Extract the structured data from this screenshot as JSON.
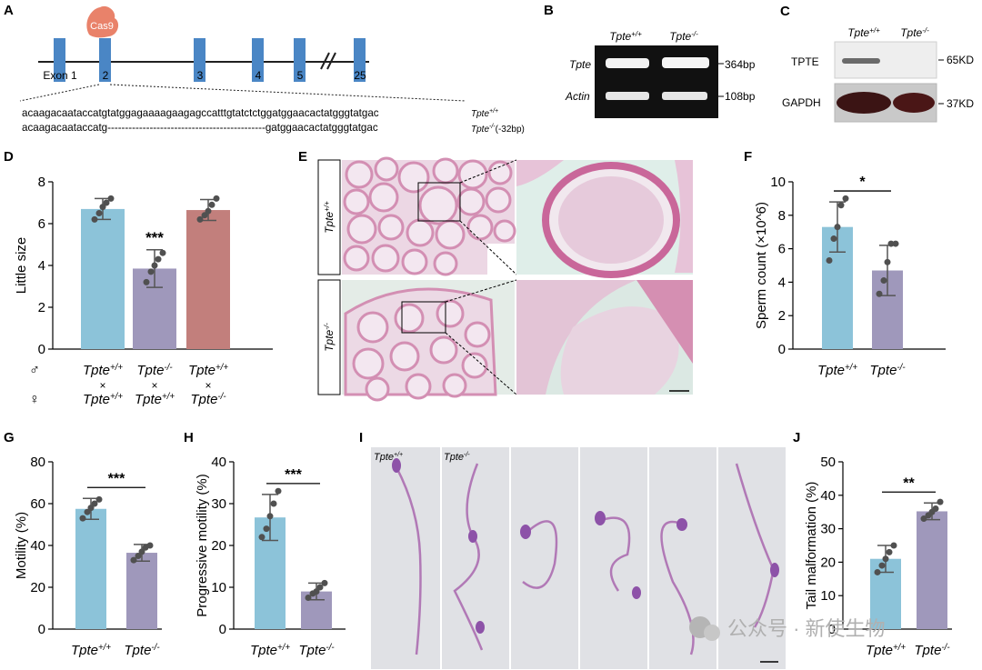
{
  "panels": {
    "a": "A",
    "b": "B",
    "c": "C",
    "d": "D",
    "e": "E",
    "f": "F",
    "g": "G",
    "h": "H",
    "i": "I",
    "j": "J"
  },
  "genotypes": {
    "wt": "Tpte",
    "wt_sup": "+/+",
    "ko": "Tpte",
    "ko_sup": "-/-"
  },
  "panel_a": {
    "cas9": "Cas9",
    "exons": [
      "Exon 1",
      "2",
      "3",
      "4",
      "5",
      "25"
    ],
    "seq_wt": "acaagacaataccatgtatggagaaaagaagagccatttgtatctctggatggaacactatgggtatgac",
    "seq_ko": "acaagacaataccatg---------------------------------------------gatggaacactatgggtatgac",
    "label_wt": "Tpte",
    "label_wt_sup": "+/+",
    "label_ko": "Tpte",
    "label_ko_sup": "-/-",
    "label_ko_note": "(-32bp)"
  },
  "panel_b": {
    "row1": "Tpte",
    "row2": "Actin",
    "size1": "364bp",
    "size2": "108bp"
  },
  "panel_c": {
    "row1": "TPTE",
    "row2": "GAPDH",
    "size1": "65KD",
    "size2": "37KD"
  },
  "chart_data": [
    {
      "panel": "D",
      "type": "bar",
      "ylabel": "Little size",
      "ylim": [
        0,
        8
      ],
      "yticks": [
        0,
        2,
        4,
        6,
        8
      ],
      "categories": [
        "Tpte+/+ × Tpte+/+",
        "Tpte-/- × Tpte+/+",
        "Tpte+/+ × Tpte-/-"
      ],
      "values": [
        6.7,
        3.85,
        6.65
      ],
      "errors": [
        0.5,
        0.9,
        0.5
      ],
      "points": [
        [
          6.2,
          6.5,
          6.8,
          7.0,
          7.2
        ],
        [
          3.2,
          3.7,
          4.0,
          4.3,
          4.6
        ],
        [
          6.2,
          6.4,
          6.6,
          6.9,
          7.2
        ]
      ],
      "colors": [
        "#8cc3d9",
        "#9f98bb",
        "#c27f7c"
      ],
      "significance": [
        "",
        "***",
        ""
      ],
      "cross_symbols": {
        "male": "♂",
        "female": "♀",
        "times": "×"
      }
    },
    {
      "panel": "F",
      "type": "bar",
      "ylabel": "Sperm count (×10^6)",
      "ylim": [
        0,
        10
      ],
      "yticks": [
        0,
        2,
        4,
        6,
        8,
        10
      ],
      "categories": [
        "Tpte+/+",
        "Tpte-/-"
      ],
      "values": [
        7.3,
        4.7
      ],
      "errors": [
        1.5,
        1.5
      ],
      "points": [
        [
          5.3,
          6.6,
          7.3,
          8.6,
          9.0
        ],
        [
          3.3,
          4.1,
          5.2,
          6.3,
          6.3
        ]
      ],
      "colors": [
        "#8cc3d9",
        "#9f98bb"
      ],
      "significance": "*"
    },
    {
      "panel": "G",
      "type": "bar",
      "ylabel": "Motility (%)",
      "ylim": [
        0,
        80
      ],
      "yticks": [
        0,
        20,
        40,
        60,
        80
      ],
      "categories": [
        "Tpte+/+",
        "Tpte-/-"
      ],
      "values": [
        57.5,
        36.5
      ],
      "errors": [
        5,
        4
      ],
      "points": [
        [
          53,
          56,
          58,
          60,
          62
        ],
        [
          33,
          35,
          37,
          39,
          40
        ]
      ],
      "colors": [
        "#8cc3d9",
        "#9f98bb"
      ],
      "significance": "***"
    },
    {
      "panel": "H",
      "type": "bar",
      "ylabel": "Progressive motility (%)",
      "ylim": [
        0,
        40
      ],
      "yticks": [
        0,
        10,
        20,
        30,
        40
      ],
      "categories": [
        "Tpte+/+",
        "Tpte-/-"
      ],
      "values": [
        26.7,
        9
      ],
      "errors": [
        5.5,
        2
      ],
      "points": [
        [
          22,
          24,
          27,
          30,
          33
        ],
        [
          7.5,
          8.5,
          9,
          10,
          11
        ]
      ],
      "colors": [
        "#8cc3d9",
        "#9f98bb"
      ],
      "significance": "***"
    },
    {
      "panel": "J",
      "type": "bar",
      "ylabel": "Tail malformation (%)",
      "ylim": [
        0,
        50
      ],
      "yticks": [
        0,
        10,
        20,
        30,
        40,
        50
      ],
      "categories": [
        "Tpte+/+",
        "Tpte-/-"
      ],
      "values": [
        21,
        35.2
      ],
      "errors": [
        4,
        2.5
      ],
      "points": [
        [
          17,
          19,
          21,
          23,
          25
        ],
        [
          33,
          34,
          35,
          36,
          38
        ]
      ],
      "colors": [
        "#8cc3d9",
        "#9f98bb"
      ],
      "significance": "**"
    }
  ],
  "panel_e": {
    "row1": "Tpte",
    "row1_sup": "+/+",
    "row2": "Tpte",
    "row2_sup": "-/-"
  },
  "panel_i": {
    "label_wt": "Tpte",
    "label_wt_sup": "+/+",
    "label_ko": "Tpte",
    "label_ko_sup": "-/-"
  },
  "watermark": {
    "text": "公众号 · 新使生物"
  },
  "colors": {
    "bar_wt": "#8cc3d9",
    "bar_ko": "#9f98bb",
    "bar_rescue": "#c27f7c",
    "exon": "#4a86c5",
    "cas9": "#e9826a",
    "he_pink": "#d58fb2"
  }
}
